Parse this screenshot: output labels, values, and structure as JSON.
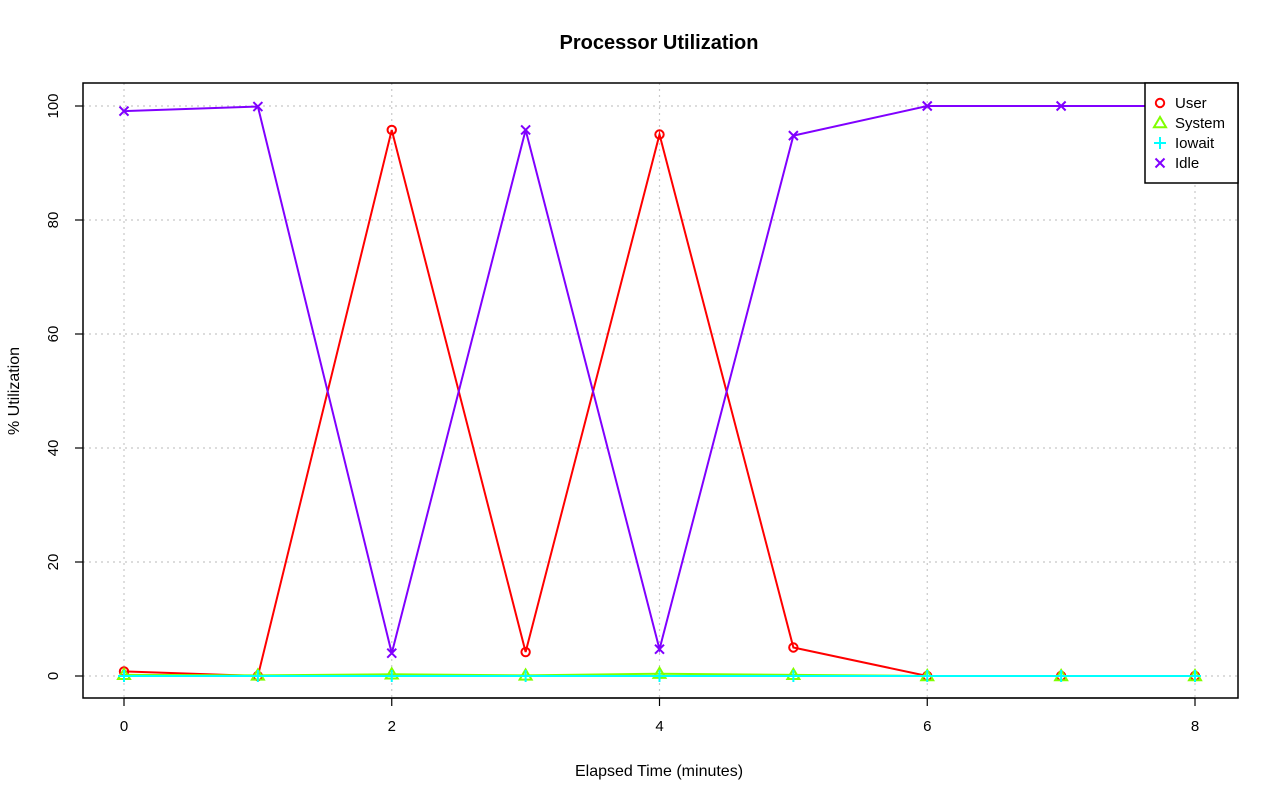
{
  "chart_data": {
    "type": "line",
    "title": "Processor Utilization",
    "xlabel": "Elapsed Time (minutes)",
    "ylabel": "% Utilization",
    "x": [
      0,
      1,
      2,
      3,
      4,
      5,
      6,
      7,
      8
    ],
    "xlim": [
      0,
      8
    ],
    "ylim": [
      0,
      100
    ],
    "x_ticks": [
      0,
      2,
      4,
      6,
      8
    ],
    "y_ticks": [
      0,
      20,
      40,
      60,
      80,
      100
    ],
    "grid": true,
    "legend_position": "top-right",
    "series": [
      {
        "name": "User",
        "color": "#ff0000",
        "marker": "circle",
        "values": [
          0.8,
          0.0,
          95.8,
          4.2,
          95.0,
          5.0,
          0.0,
          0.0,
          0.0
        ]
      },
      {
        "name": "System",
        "color": "#80ff00",
        "marker": "triangle",
        "values": [
          0.2,
          0.1,
          0.3,
          0.1,
          0.4,
          0.2,
          0.0,
          0.0,
          0.0
        ]
      },
      {
        "name": "Iowait",
        "color": "#00ffff",
        "marker": "plus",
        "values": [
          0.0,
          0.0,
          0.0,
          0.0,
          0.0,
          0.0,
          0.0,
          0.0,
          0.0
        ]
      },
      {
        "name": "Idle",
        "color": "#8000ff",
        "marker": "cross",
        "values": [
          99.1,
          99.9,
          4.0,
          95.8,
          4.7,
          94.8,
          100.0,
          100.0,
          100.0
        ]
      }
    ]
  }
}
